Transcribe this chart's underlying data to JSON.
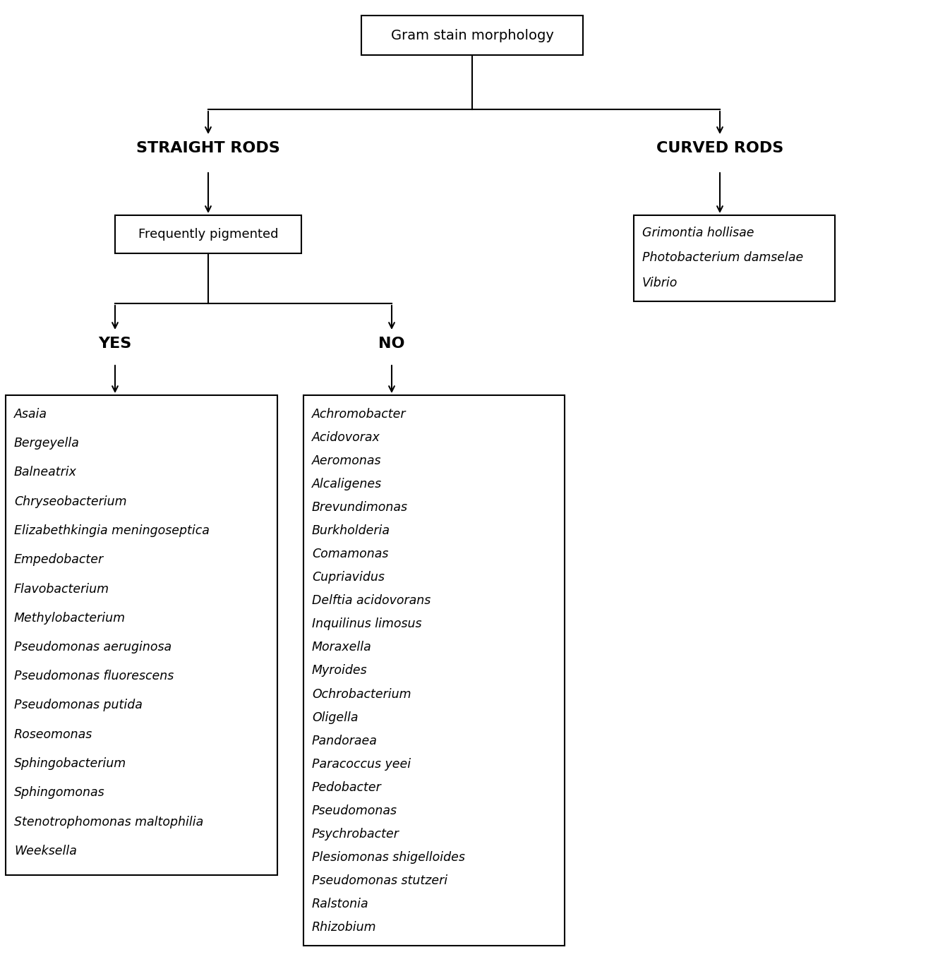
{
  "root_label": "Gram stain morphology",
  "branch_left_label": "STRAIGHT RODS",
  "branch_right_label": "CURVED RODS",
  "pigmented_label": "Frequently pigmented",
  "yes_label": "YES",
  "no_label": "NO",
  "curved_rods_list": [
    "Grimontia hollisae",
    "Photobacterium damselae",
    "Vibrio"
  ],
  "yes_list": [
    "Asaia",
    "Bergeyella",
    "Balneatrix",
    "Chryseobacterium",
    "Elizabethkingia meningoseptica",
    "Empedobacter",
    "Flavobacterium",
    "Methylobacterium",
    "Pseudomonas aeruginosa",
    "Pseudomonas fluorescens",
    "Pseudomonas putida",
    "Roseomonas",
    "Sphingobacterium",
    "Sphingomonas",
    "Stenotrophomonas maltophilia",
    "Weeksella"
  ],
  "no_list": [
    "Achromobacter",
    "Acidovorax",
    "Aeromonas",
    "Alcaligenes",
    "Brevundimonas",
    "Burkholderia",
    "Comamonas",
    "Cupriavidus",
    "Delftia acidovorans",
    "Inquilinus limosus",
    "Moraxella",
    "Myroides",
    "Ochrobacterium",
    "Oligella",
    "Pandoraea",
    "Paracoccus yeei",
    "Pedobacter",
    "Pseudomonas",
    "Psychrobacter",
    "Plesiomonas shigelloides",
    "Pseudomonas stutzeri",
    "Ralstonia",
    "Rhizobium"
  ],
  "bg_color": "#ffffff",
  "text_color": "#000000",
  "figsize": [
    13.39,
    13.66
  ],
  "dpi": 100
}
